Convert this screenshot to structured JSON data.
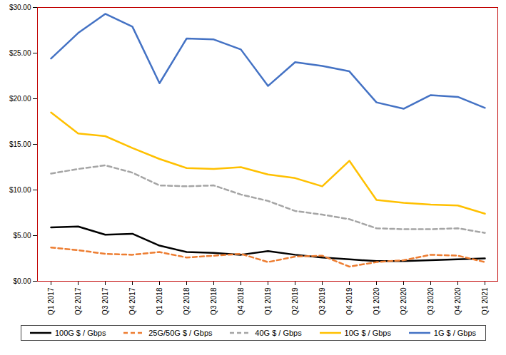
{
  "chart_data": {
    "type": "line",
    "categories": [
      "Q1 2017",
      "Q2 2017",
      "Q3 2017",
      "Q4 2017",
      "Q1 2018",
      "Q2 2018",
      "Q3 2018",
      "Q4 2018",
      "Q1 2019",
      "Q2 2019",
      "Q3 2019",
      "Q4 2019",
      "Q1 2020",
      "Q2 2020",
      "Q3 2020",
      "Q4 2020",
      "Q1 2021"
    ],
    "series": [
      {
        "name": "100G $ / Gbps",
        "color": "#000000",
        "line_style": "solid",
        "values": [
          5.9,
          6.0,
          5.1,
          5.2,
          3.9,
          3.2,
          3.1,
          2.9,
          3.3,
          2.9,
          2.6,
          2.4,
          2.2,
          2.2,
          2.3,
          2.4,
          2.5
        ]
      },
      {
        "name": "25G/50G $ / Gbps",
        "color": "#ED7D31",
        "line_style": "dashed",
        "values": [
          3.7,
          3.4,
          3.0,
          2.9,
          3.2,
          2.6,
          2.8,
          3.0,
          2.1,
          2.7,
          2.8,
          1.6,
          2.1,
          2.3,
          2.9,
          2.8,
          2.1
        ]
      },
      {
        "name": "40G $ / Gbps",
        "color": "#A5A5A5",
        "line_style": "dashed",
        "values": [
          11.8,
          12.3,
          12.7,
          11.9,
          10.5,
          10.4,
          10.5,
          9.5,
          8.8,
          7.7,
          7.3,
          6.8,
          5.8,
          5.7,
          5.7,
          5.8,
          5.3
        ]
      },
      {
        "name": "10G $ / Gbps",
        "color": "#FFC000",
        "line_style": "solid",
        "values": [
          18.5,
          16.2,
          15.9,
          14.6,
          13.4,
          12.4,
          12.3,
          12.5,
          11.7,
          11.3,
          10.4,
          13.2,
          8.9,
          8.6,
          8.4,
          8.3,
          7.4
        ]
      },
      {
        "name": "1G $ / Gbps",
        "color": "#4472C4",
        "line_style": "solid",
        "values": [
          24.4,
          27.2,
          29.3,
          27.9,
          21.7,
          26.6,
          26.5,
          25.4,
          21.4,
          24.0,
          23.6,
          23.0,
          19.6,
          18.9,
          20.4,
          20.2,
          19.0
        ]
      }
    ],
    "ylim": [
      0,
      30
    ],
    "yticks": [
      {
        "value": 0,
        "label": "$0.00"
      },
      {
        "value": 5,
        "label": "$5.00"
      },
      {
        "value": 10,
        "label": "$10.00"
      },
      {
        "value": 15,
        "label": "$15.00"
      },
      {
        "value": 20,
        "label": "$20.00"
      },
      {
        "value": 25,
        "label": "$25.00"
      },
      {
        "value": 30,
        "label": "$30.00"
      }
    ],
    "grid": false,
    "legend": "bottom"
  }
}
